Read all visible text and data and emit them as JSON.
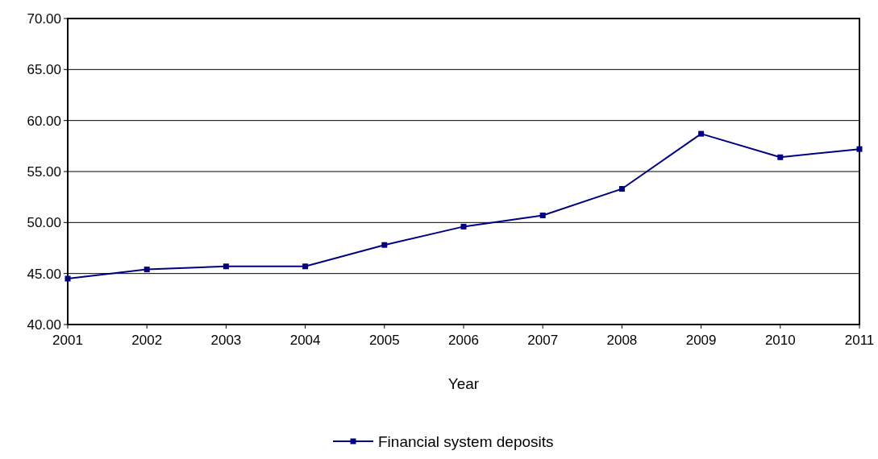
{
  "chart_data": {
    "type": "line",
    "xlabel": "Year",
    "x": [
      2001,
      2002,
      2003,
      2004,
      2005,
      2006,
      2007,
      2008,
      2009,
      2010,
      2011
    ],
    "series": [
      {
        "name": "Financial system deposits",
        "color": "#000080",
        "values": [
          44.5,
          45.4,
          45.7,
          45.7,
          47.8,
          49.6,
          50.7,
          53.3,
          58.7,
          56.4,
          57.2
        ]
      }
    ],
    "xlim": [
      2001,
      2011
    ],
    "xticks": [
      2001,
      2002,
      2003,
      2004,
      2005,
      2006,
      2007,
      2008,
      2009,
      2010,
      2011
    ],
    "ylim": [
      40,
      70
    ],
    "yticks": [
      {
        "value": 40,
        "label": "40.00"
      },
      {
        "value": 45,
        "label": "45.00"
      },
      {
        "value": 50,
        "label": "50.00"
      },
      {
        "value": 55,
        "label": "55.00"
      },
      {
        "value": 60,
        "label": "60.00"
      },
      {
        "value": 65,
        "label": "65.00"
      },
      {
        "value": 70,
        "label": "70.00"
      }
    ],
    "grid": "y",
    "legend": "bottom",
    "marker": "square",
    "line_style": "solid"
  }
}
